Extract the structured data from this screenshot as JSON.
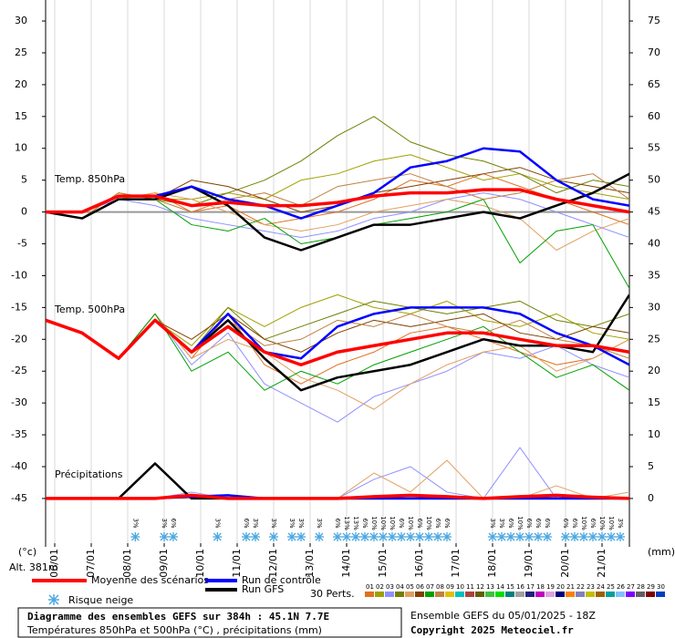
{
  "chart_data": {
    "type": "line",
    "title": "Diagramme des ensembles GEFS sur 384h : 45.1N 7.7E",
    "subtitle": "Températures 850hPa et 500hPa (°C) , précipitations (mm)",
    "run_label": "Ensemble GEFS du 05/01/2025 - 18Z",
    "copyright": "Copyright 2025 Meteociel.fr",
    "altitude": "Alt. 381m",
    "y_label": "(°c)",
    "y2_label": "(mm)",
    "panel_labels": [
      "Temp. 850hPa",
      "Temp. 500hPa",
      "Précipitations"
    ],
    "snow_legend": "Risque neige",
    "members_legend": "30 Perts.",
    "xlim": [
      0,
      384
    ],
    "xticks": [
      {
        "value": 6,
        "label": "06/01"
      },
      {
        "value": 30,
        "label": "07/01"
      },
      {
        "value": 54,
        "label": "08/01"
      },
      {
        "value": 78,
        "label": "09/01"
      },
      {
        "value": 102,
        "label": "10/01"
      },
      {
        "value": 126,
        "label": "11/01"
      },
      {
        "value": 150,
        "label": "12/01"
      },
      {
        "value": 174,
        "label": "13/01"
      },
      {
        "value": 198,
        "label": "14/01"
      },
      {
        "value": 222,
        "label": "15/01"
      },
      {
        "value": 246,
        "label": "16/01"
      },
      {
        "value": 270,
        "label": "17/01"
      },
      {
        "value": 294,
        "label": "18/01"
      },
      {
        "value": 318,
        "label": "19/01"
      },
      {
        "value": 342,
        "label": "20/01"
      },
      {
        "value": 366,
        "label": "21/01"
      }
    ],
    "ylim": [
      -52.6,
      33.3
    ],
    "yticks": [
      30,
      25,
      20,
      15,
      10,
      5,
      0,
      -5,
      -10,
      -15,
      -20,
      -25,
      -30,
      -35,
      -40,
      -45
    ],
    "y2lim": [
      -7.6,
      78.3
    ],
    "y2ticks": [
      75,
      70,
      65,
      60,
      55,
      50,
      45,
      40,
      35,
      30,
      25,
      20,
      15,
      10,
      5,
      0
    ],
    "x": [
      0,
      24,
      48,
      72,
      96,
      120,
      144,
      168,
      192,
      216,
      240,
      264,
      288,
      312,
      336,
      360,
      384
    ],
    "series": [
      {
        "name": "Moyenne des scénarios",
        "color": "#ff0000",
        "t850": [
          0,
          0,
          2.5,
          2.5,
          1,
          1.5,
          1,
          1,
          1.5,
          2.5,
          3,
          3,
          3.5,
          3.5,
          2,
          1,
          0
        ],
        "t500": [
          -17,
          -19,
          -23,
          -17,
          -22,
          -18,
          -22,
          -24,
          -22,
          -21,
          -20,
          -19,
          -19,
          -20,
          -21,
          -21,
          -22
        ],
        "precip": [
          0,
          0,
          0,
          0,
          0.5,
          0,
          0,
          0,
          0,
          0.3,
          0.5,
          0.3,
          0,
          0.3,
          0.5,
          0.2,
          0
        ]
      },
      {
        "name": "Run de contrôle",
        "color": "#0000ff",
        "t850": [
          0,
          0,
          2.5,
          2.5,
          4,
          2,
          1,
          -1,
          1,
          3,
          7,
          8,
          10,
          9.5,
          5,
          2,
          1
        ],
        "t500": [
          -17,
          -19,
          -23,
          -17,
          -22,
          -16,
          -22,
          -23,
          -18,
          -16,
          -15,
          -15,
          -15,
          -16,
          -19,
          -21,
          -24
        ],
        "precip": [
          0,
          0,
          0,
          0,
          0.3,
          0.5,
          0,
          0,
          0,
          0,
          0,
          0,
          0,
          0,
          0,
          0,
          0
        ]
      },
      {
        "name": "Run GFS",
        "color": "#000000",
        "t850": [
          0,
          -1,
          2,
          2,
          4,
          1,
          -4,
          -6,
          -4,
          -2,
          -2,
          -1,
          0,
          -1,
          1,
          3,
          6
        ],
        "t500": [
          -17,
          -19,
          -23,
          -17,
          -22,
          -17,
          -23,
          -28,
          -26,
          -25,
          -24,
          -22,
          -20,
          -21,
          -21,
          -22,
          -13
        ],
        "precip": [
          0,
          0,
          0,
          5.5,
          0,
          0,
          0,
          0,
          0,
          0,
          0,
          0,
          0,
          0,
          0,
          0,
          0
        ]
      }
    ],
    "members": [
      {
        "name": "01",
        "color": "#e07020",
        "t850": [
          0,
          -1,
          2,
          3,
          0,
          1,
          -2,
          -1,
          0,
          2,
          5,
          4,
          6,
          4,
          2,
          0,
          -2
        ],
        "t500": [
          -17,
          -19,
          -23,
          -16,
          -23,
          -16,
          -24,
          -27,
          -24,
          -22,
          -19,
          -18,
          -20,
          -22,
          -24,
          -23,
          -20
        ]
      },
      {
        "name": "02",
        "color": "#a0a000",
        "t850": [
          0,
          -1,
          3,
          2,
          2,
          3,
          2,
          5,
          6,
          8,
          9,
          7,
          5,
          6,
          4,
          3,
          2
        ],
        "t500": [
          -17,
          -19,
          -23,
          -17,
          -21,
          -15,
          -18,
          -15,
          -13,
          -15,
          -16,
          -14,
          -17,
          -18,
          -16,
          -19,
          -20
        ]
      },
      {
        "name": "03",
        "color": "#9090ff",
        "t850": [
          0,
          0,
          2,
          1,
          -1,
          -2,
          -3,
          -4,
          -3,
          -1,
          0,
          2,
          3,
          2,
          0,
          -2,
          -4
        ],
        "t500": [
          -17,
          -19,
          -23,
          -16,
          -24,
          -19,
          -27,
          -30,
          -33,
          -29,
          -27,
          -25,
          -22,
          -23,
          -21,
          -24,
          -26
        ],
        "precip": [
          0,
          0,
          0,
          0,
          1,
          0,
          0,
          0,
          0,
          3,
          5,
          1,
          0,
          8,
          0,
          0,
          0
        ]
      },
      {
        "name": "04",
        "color": "#708000",
        "t850": [
          0,
          -1,
          3,
          2,
          1,
          3,
          5,
          8,
          12,
          15,
          11,
          9,
          8,
          6,
          3,
          5,
          4
        ],
        "t500": [
          -17,
          -19,
          -23,
          -17,
          -22,
          -15,
          -20,
          -18,
          -16,
          -14,
          -15,
          -16,
          -15,
          -14,
          -17,
          -18,
          -16
        ]
      },
      {
        "name": "05",
        "color": "#e0a060",
        "t850": [
          0,
          -1,
          2,
          3,
          2,
          0,
          -2,
          -3,
          -2,
          0,
          1,
          2,
          1,
          -1,
          -6,
          -3,
          -1
        ],
        "t500": [
          -17,
          -19,
          -23,
          -16,
          -23,
          -20,
          -22,
          -26,
          -28,
          -31,
          -27,
          -24,
          -22,
          -21,
          -25,
          -23,
          -20
        ],
        "precip": [
          0,
          0,
          0,
          0,
          0,
          0,
          0,
          0,
          0,
          4,
          1,
          6,
          0,
          0,
          2,
          0,
          1
        ]
      },
      {
        "name": "06",
        "color": "#804000",
        "t850": [
          0,
          -1,
          2,
          2,
          5,
          4,
          2,
          0,
          1,
          3,
          4,
          5,
          6,
          7,
          5,
          4,
          3
        ],
        "t500": [
          -17,
          -19,
          -23,
          -17,
          -20,
          -16,
          -20,
          -22,
          -19,
          -17,
          -18,
          -17,
          -16,
          -19,
          -20,
          -18,
          -19
        ]
      },
      {
        "name": "07",
        "color": "#00a000",
        "t850": [
          0,
          -1,
          2,
          2,
          -2,
          -3,
          -1,
          -5,
          -4,
          -2,
          -1,
          0,
          2,
          -8,
          -3,
          -2,
          -12
        ],
        "t500": [
          -17,
          -19,
          -23,
          -16,
          -25,
          -22,
          -28,
          -25,
          -27,
          -24,
          -22,
          -20,
          -18,
          -22,
          -26,
          -24,
          -28
        ]
      },
      {
        "name": "08",
        "color": "#c08040",
        "t850": [
          0,
          -1,
          3,
          2,
          0,
          2,
          3,
          1,
          4,
          5,
          6,
          4,
          2,
          3,
          5,
          6,
          2
        ],
        "t500": [
          -17,
          -19,
          -23,
          -17,
          -22,
          -17,
          -21,
          -20,
          -17,
          -18,
          -16,
          -18,
          -19,
          -17,
          -20,
          -21,
          -23
        ]
      },
      {
        "name": "09",
        "color": "#e0c000"
      },
      {
        "name": "10",
        "color": "#00c0c0"
      },
      {
        "name": "11",
        "color": "#b04040"
      },
      {
        "name": "12",
        "color": "#606000"
      },
      {
        "name": "13",
        "color": "#40c040"
      },
      {
        "name": "14",
        "color": "#00e000"
      },
      {
        "name": "15",
        "color": "#008080"
      },
      {
        "name": "16",
        "color": "#a0a0a0"
      },
      {
        "name": "17",
        "color": "#202080"
      },
      {
        "name": "18",
        "color": "#c000c0"
      },
      {
        "name": "19",
        "color": "#e0a0e0"
      },
      {
        "name": "20",
        "color": "#000080"
      },
      {
        "name": "21",
        "color": "#ff8000"
      },
      {
        "name": "22",
        "color": "#8080c0"
      },
      {
        "name": "23",
        "color": "#c0c000"
      },
      {
        "name": "24",
        "color": "#a06000"
      },
      {
        "name": "25",
        "color": "#00a0a0"
      },
      {
        "name": "26",
        "color": "#80c0ff"
      },
      {
        "name": "27",
        "color": "#8000ff"
      },
      {
        "name": "28",
        "color": "#606060"
      },
      {
        "name": "29",
        "color": "#800000"
      },
      {
        "name": "30",
        "color": "#0040c0"
      }
    ],
    "snow_risk": [
      {
        "x": 59,
        "value": 3,
        "label": "3%"
      },
      {
        "x": 78,
        "value": 3,
        "label": "3%"
      },
      {
        "x": 84,
        "value": 6,
        "label": "6%"
      },
      {
        "x": 113,
        "value": 3,
        "label": "3%"
      },
      {
        "x": 132,
        "value": 6,
        "label": "6%"
      },
      {
        "x": 138,
        "value": 3,
        "label": "3%"
      },
      {
        "x": 150,
        "value": 3,
        "label": "3%"
      },
      {
        "x": 162,
        "value": 3,
        "label": "3%"
      },
      {
        "x": 168,
        "value": 3,
        "label": "3%"
      },
      {
        "x": 180,
        "value": 3,
        "label": "3%"
      },
      {
        "x": 192,
        "value": 6,
        "label": "6%"
      },
      {
        "x": 198,
        "value": 13,
        "label": "13%"
      },
      {
        "x": 204,
        "value": 13,
        "label": "13%"
      },
      {
        "x": 210,
        "value": 6,
        "label": "6%"
      },
      {
        "x": 216,
        "value": 10,
        "label": "10%"
      },
      {
        "x": 222,
        "value": 10,
        "label": "10%"
      },
      {
        "x": 228,
        "value": 10,
        "label": "10%"
      },
      {
        "x": 234,
        "value": 6,
        "label": "6%"
      },
      {
        "x": 240,
        "value": 10,
        "label": "10%"
      },
      {
        "x": 246,
        "value": 6,
        "label": "6%"
      },
      {
        "x": 252,
        "value": 10,
        "label": "10%"
      },
      {
        "x": 258,
        "value": 6,
        "label": "6%"
      },
      {
        "x": 264,
        "value": 6,
        "label": "6%"
      },
      {
        "x": 294,
        "value": 3,
        "label": "3%"
      },
      {
        "x": 300,
        "value": 3,
        "label": "3%"
      },
      {
        "x": 306,
        "value": 6,
        "label": "6%"
      },
      {
        "x": 312,
        "value": 10,
        "label": "10%"
      },
      {
        "x": 318,
        "value": 6,
        "label": "6%"
      },
      {
        "x": 324,
        "value": 6,
        "label": "6%"
      },
      {
        "x": 330,
        "value": 6,
        "label": "6%"
      },
      {
        "x": 342,
        "value": 6,
        "label": "6%"
      },
      {
        "x": 348,
        "value": 6,
        "label": "6%"
      },
      {
        "x": 354,
        "value": 10,
        "label": "10%"
      },
      {
        "x": 360,
        "value": 6,
        "label": "6%"
      },
      {
        "x": 366,
        "value": 10,
        "label": "10%"
      },
      {
        "x": 372,
        "value": 10,
        "label": "10%"
      },
      {
        "x": 378,
        "value": 3,
        "label": "3%"
      }
    ]
  }
}
